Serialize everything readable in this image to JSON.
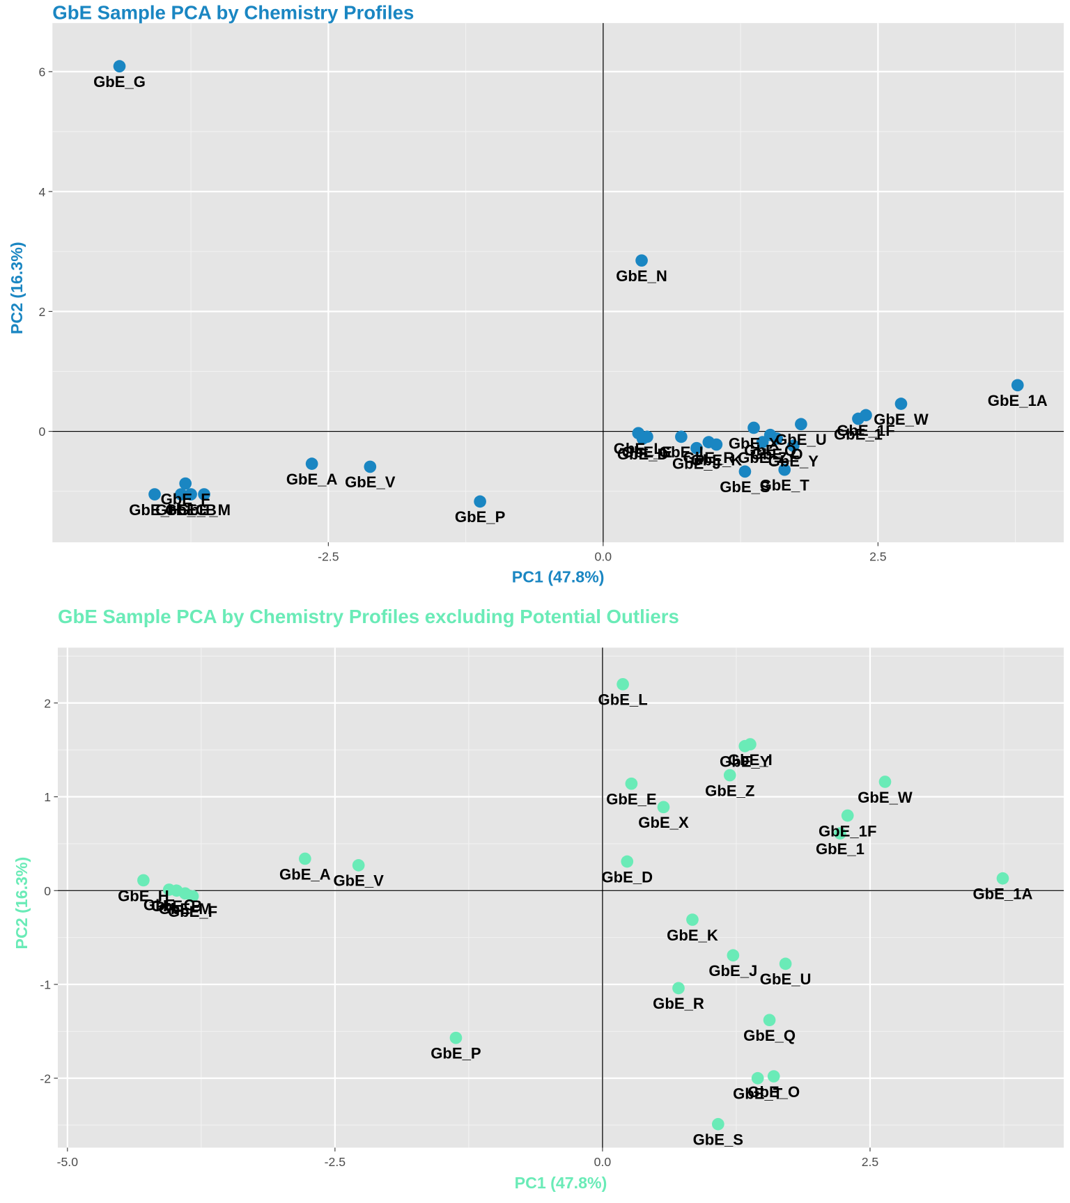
{
  "chart_data": [
    {
      "type": "scatter",
      "title": "GbE Sample PCA by Chemistry Profiles",
      "x_label": "PC1 (47.8%)",
      "y_label": "PC2 (16.3%)",
      "color": "#1a86c2",
      "labels": [
        "GbE_G",
        "GbE_N",
        "GbE_1A",
        "GbE_W",
        "GbE_1F",
        "GbE_1",
        "GbE_P",
        "GbE_A",
        "GbE_V",
        "GbE_H",
        "GbE_C",
        "GbE_B",
        "GbE_F",
        "GbE_M",
        "GbE_L",
        "GbE_E",
        "GbE_D",
        "GbE_I",
        "GbE_J",
        "GbE_R",
        "GbE_K",
        "GbE_S",
        "GbE_X",
        "GbE_Z",
        "GbE_Q",
        "GbE_O",
        "GbE_Y",
        "GbE_U",
        "GbE_T"
      ],
      "x": [
        -4.4,
        0.35,
        3.77,
        2.71,
        2.39,
        2.32,
        -1.12,
        -2.65,
        -2.12,
        -4.08,
        -3.84,
        -3.75,
        -3.8,
        -3.63,
        0.32,
        0.4,
        0.36,
        0.71,
        0.85,
        0.96,
        1.03,
        1.29,
        1.37,
        1.45,
        1.52,
        1.58,
        1.73,
        1.8,
        1.65
      ],
      "y": [
        6.09,
        2.85,
        0.77,
        0.46,
        0.27,
        0.21,
        -1.17,
        -0.54,
        -0.59,
        -1.05,
        -1.05,
        -1.05,
        -0.87,
        -1.05,
        -0.03,
        -0.09,
        -0.12,
        -0.09,
        -0.28,
        -0.18,
        -0.22,
        -0.67,
        0.06,
        -0.18,
        -0.06,
        -0.12,
        -0.24,
        0.12,
        -0.64
      ],
      "xlim": [
        -5.01,
        4.19
      ],
      "ylim": [
        -1.85,
        6.81
      ],
      "xticks": [
        {
          "value": -2.5,
          "label": "-2.5"
        },
        {
          "value": 0,
          "label": "0.0"
        },
        2.5
      ],
      "yticks": [
        0,
        2,
        4,
        6
      ],
      "reference_lines": {
        "x": 0,
        "y": 0
      },
      "grid": true
    },
    {
      "type": "scatter",
      "title": "GbE Sample PCA by Chemistry Profiles excluding Potential Outliers",
      "x_label": "PC1 (47.8%)",
      "y_label": "PC2 (16.3%)",
      "color": "#6aebb7",
      "labels": [
        "GbE_L",
        "GbE_Y",
        "GbE_Z",
        "GbE_E",
        "GbE_X",
        "GbE_W",
        "GbE_1F",
        "GbE_1",
        "GbE_D",
        "GbE_1A",
        "GbE_I",
        "GbE_K",
        "GbE_J",
        "GbE_U",
        "GbE_R",
        "GbE_Q",
        "GbE_T",
        "GbE_O",
        "GbE_S",
        "GbE_H",
        "GbE_C",
        "GbE_B",
        "GbE_F",
        "GbE_M",
        "GbE_A",
        "GbE_V",
        "GbE_P"
      ],
      "x": [
        0.19,
        1.33,
        1.19,
        0.27,
        0.57,
        2.64,
        2.29,
        2.22,
        0.23,
        3.74,
        1.38,
        0.84,
        1.22,
        1.71,
        0.71,
        1.56,
        1.45,
        1.6,
        1.08,
        -4.29,
        -4.05,
        -3.98,
        -3.83,
        -3.9,
        -2.78,
        -2.28,
        -1.37
      ],
      "y": [
        2.2,
        1.54,
        1.23,
        1.14,
        0.89,
        1.16,
        0.8,
        0.61,
        0.31,
        0.13,
        1.56,
        -0.31,
        -0.69,
        -0.78,
        -1.04,
        -1.38,
        -2.0,
        -1.98,
        -2.49,
        0.11,
        0.01,
        0.0,
        -0.06,
        -0.03,
        0.34,
        0.27,
        -1.57
      ],
      "xlim": [
        -5.09,
        4.31
      ],
      "ylim": [
        -2.74,
        2.59
      ],
      "xticks": [
        {
          "value": -5,
          "label": "-5.0"
        },
        {
          "value": -2.5,
          "label": "-2.5"
        },
        {
          "value": 0,
          "label": "0.0"
        },
        2.5
      ],
      "yticks": [
        -2,
        -1,
        0,
        1,
        2
      ],
      "reference_lines": {
        "x": 0,
        "y": 0
      },
      "grid": true
    }
  ]
}
